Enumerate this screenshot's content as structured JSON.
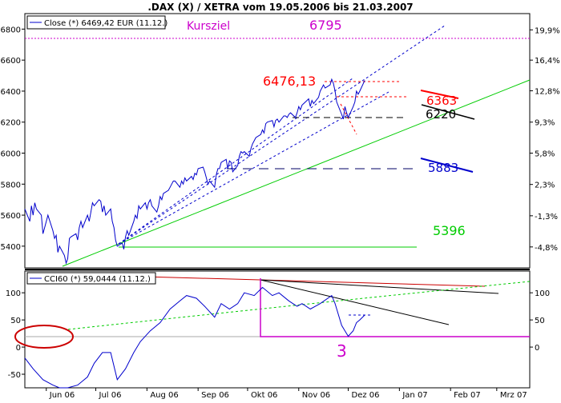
{
  "chart_data": [
    {
      "type": "line",
      "title": ".DAX (X) / XETRA vom 19.05.2006 bis 21.03.2007",
      "legend": {
        "label": "Close (*) 6469,42 EUR (11.12.)",
        "placement": "top-left"
      },
      "x_range": [
        "2006-05-19",
        "2007-03-21"
      ],
      "x_tick_labels": [
        {
          "date": "2006-06-01",
          "label": "Jun 06"
        },
        {
          "date": "2006-07-01",
          "label": "Jul 06"
        },
        {
          "date": "2006-08-01",
          "label": "Aug 06"
        },
        {
          "date": "2006-09-01",
          "label": "Sep 06"
        },
        {
          "date": "2006-10-01",
          "label": "Okt 06"
        },
        {
          "date": "2006-11-01",
          "label": "Nov 06"
        },
        {
          "date": "2006-12-01",
          "label": "Dez 06"
        },
        {
          "date": "2007-01-01",
          "label": "Jan 07"
        },
        {
          "date": "2007-02-01",
          "label": "Feb 07"
        },
        {
          "date": "2007-03-01",
          "label": "Mrz 07"
        }
      ],
      "ylim": [
        5260,
        6900
      ],
      "y_ticks_left": [
        5400,
        5600,
        5800,
        6000,
        6200,
        6400,
        6600,
        6800
      ],
      "y_ticks_right": [
        {
          "value": 5395,
          "label": "-4,8%"
        },
        {
          "value": 5596,
          "label": "-1,3%"
        },
        {
          "value": 5798,
          "label": "2,3%"
        },
        {
          "value": 6000,
          "label": "5,8%"
        },
        {
          "value": 6200,
          "label": "9,3%"
        },
        {
          "value": 6402,
          "label": "12,8%"
        },
        {
          "value": 6600,
          "label": "16,4%"
        },
        {
          "value": 6795,
          "label": "19,9%"
        }
      ],
      "grid": false,
      "series": [
        {
          "color": "#0000cc",
          "points": [
            [
              "2006-05-19",
              5640
            ],
            [
              "2006-05-22",
              5560
            ],
            [
              "2006-05-23",
              5660
            ],
            [
              "2006-05-24",
              5600
            ],
            [
              "2006-05-25",
              5680
            ],
            [
              "2006-05-26",
              5640
            ],
            [
              "2006-05-29",
              5600
            ],
            [
              "2006-05-30",
              5480
            ],
            [
              "2006-05-31",
              5520
            ],
            [
              "2006-06-01",
              5560
            ],
            [
              "2006-06-02",
              5600
            ],
            [
              "2006-06-05",
              5500
            ],
            [
              "2006-06-06",
              5450
            ],
            [
              "2006-06-07",
              5470
            ],
            [
              "2006-06-08",
              5360
            ],
            [
              "2006-06-09",
              5400
            ],
            [
              "2006-06-12",
              5340
            ],
            [
              "2006-06-13",
              5290
            ],
            [
              "2006-06-14",
              5320
            ],
            [
              "2006-06-15",
              5450
            ],
            [
              "2006-06-16",
              5460
            ],
            [
              "2006-06-19",
              5480
            ],
            [
              "2006-06-20",
              5440
            ],
            [
              "2006-06-21",
              5520
            ],
            [
              "2006-06-22",
              5560
            ],
            [
              "2006-06-23",
              5520
            ],
            [
              "2006-06-26",
              5600
            ],
            [
              "2006-06-27",
              5560
            ],
            [
              "2006-06-28",
              5620
            ],
            [
              "2006-06-29",
              5680
            ],
            [
              "2006-06-30",
              5660
            ],
            [
              "2006-07-03",
              5700
            ],
            [
              "2006-07-04",
              5690
            ],
            [
              "2006-07-05",
              5620
            ],
            [
              "2006-07-06",
              5660
            ],
            [
              "2006-07-07",
              5600
            ],
            [
              "2006-07-10",
              5640
            ],
            [
              "2006-07-11",
              5560
            ],
            [
              "2006-07-12",
              5520
            ],
            [
              "2006-07-13",
              5440
            ],
            [
              "2006-07-14",
              5400
            ],
            [
              "2006-07-17",
              5420
            ],
            [
              "2006-07-18",
              5380
            ],
            [
              "2006-07-19",
              5460
            ],
            [
              "2006-07-20",
              5500
            ],
            [
              "2006-07-21",
              5470
            ],
            [
              "2006-07-24",
              5560
            ],
            [
              "2006-07-25",
              5600
            ],
            [
              "2006-07-26",
              5580
            ],
            [
              "2006-07-27",
              5660
            ],
            [
              "2006-07-28",
              5640
            ],
            [
              "2006-07-31",
              5680
            ],
            [
              "2006-08-01",
              5640
            ],
            [
              "2006-08-02",
              5680
            ],
            [
              "2006-08-03",
              5700
            ],
            [
              "2006-08-04",
              5660
            ],
            [
              "2006-08-07",
              5620
            ],
            [
              "2006-08-08",
              5660
            ],
            [
              "2006-08-09",
              5720
            ],
            [
              "2006-08-10",
              5700
            ],
            [
              "2006-08-11",
              5740
            ],
            [
              "2006-08-14",
              5760
            ],
            [
              "2006-08-15",
              5780
            ],
            [
              "2006-08-16",
              5800
            ],
            [
              "2006-08-17",
              5820
            ],
            [
              "2006-08-18",
              5820
            ],
            [
              "2006-08-21",
              5780
            ],
            [
              "2006-08-22",
              5820
            ],
            [
              "2006-08-23",
              5800
            ],
            [
              "2006-08-24",
              5840
            ],
            [
              "2006-08-25",
              5820
            ],
            [
              "2006-08-28",
              5850
            ],
            [
              "2006-08-29",
              5830
            ],
            [
              "2006-08-30",
              5870
            ],
            [
              "2006-08-31",
              5860
            ],
            [
              "2006-09-01",
              5900
            ],
            [
              "2006-09-04",
              5910
            ],
            [
              "2006-09-05",
              5880
            ],
            [
              "2006-09-06",
              5840
            ],
            [
              "2006-09-07",
              5800
            ],
            [
              "2006-09-08",
              5820
            ],
            [
              "2006-09-11",
              5780
            ],
            [
              "2006-09-12",
              5860
            ],
            [
              "2006-09-13",
              5900
            ],
            [
              "2006-09-14",
              5900
            ],
            [
              "2006-09-15",
              5940
            ],
            [
              "2006-09-18",
              5960
            ],
            [
              "2006-09-19",
              5900
            ],
            [
              "2006-09-20",
              5950
            ],
            [
              "2006-09-21",
              5940
            ],
            [
              "2006-09-22",
              5880
            ],
            [
              "2006-09-25",
              5920
            ],
            [
              "2006-09-26",
              5980
            ],
            [
              "2006-09-27",
              6010
            ],
            [
              "2006-09-28",
              6000
            ],
            [
              "2006-09-29",
              6010
            ],
            [
              "2006-10-02",
              5980
            ],
            [
              "2006-10-03",
              6030
            ],
            [
              "2006-10-04",
              6060
            ],
            [
              "2006-10-05",
              6080
            ],
            [
              "2006-10-06",
              6100
            ],
            [
              "2006-10-09",
              6120
            ],
            [
              "2006-10-10",
              6150
            ],
            [
              "2006-10-11",
              6130
            ],
            [
              "2006-10-12",
              6190
            ],
            [
              "2006-10-13",
              6200
            ],
            [
              "2006-10-16",
              6210
            ],
            [
              "2006-10-17",
              6170
            ],
            [
              "2006-10-18",
              6210
            ],
            [
              "2006-10-19",
              6220
            ],
            [
              "2006-10-20",
              6200
            ],
            [
              "2006-10-23",
              6240
            ],
            [
              "2006-10-24",
              6240
            ],
            [
              "2006-10-25",
              6230
            ],
            [
              "2006-10-26",
              6250
            ],
            [
              "2006-10-27",
              6260
            ],
            [
              "2006-10-30",
              6230
            ],
            [
              "2006-10-31",
              6260
            ],
            [
              "2006-11-01",
              6300
            ],
            [
              "2006-11-02",
              6280
            ],
            [
              "2006-11-03",
              6310
            ],
            [
              "2006-11-06",
              6340
            ],
            [
              "2006-11-07",
              6350
            ],
            [
              "2006-11-08",
              6300
            ],
            [
              "2006-11-09",
              6340
            ],
            [
              "2006-11-10",
              6320
            ],
            [
              "2006-11-13",
              6360
            ],
            [
              "2006-11-14",
              6400
            ],
            [
              "2006-11-15",
              6420
            ],
            [
              "2006-11-16",
              6440
            ],
            [
              "2006-11-17",
              6420
            ],
            [
              "2006-11-20",
              6440
            ],
            [
              "2006-11-21",
              6476
            ],
            [
              "2006-11-22",
              6450
            ],
            [
              "2006-11-23",
              6400
            ],
            [
              "2006-11-24",
              6330
            ],
            [
              "2006-11-27",
              6250
            ],
            [
              "2006-11-28",
              6220
            ],
            [
              "2006-11-29",
              6300
            ],
            [
              "2006-11-30",
              6260
            ],
            [
              "2006-12-01",
              6230
            ],
            [
              "2006-12-04",
              6300
            ],
            [
              "2006-12-05",
              6330
            ],
            [
              "2006-12-06",
              6400
            ],
            [
              "2006-12-07",
              6380
            ],
            [
              "2006-12-08",
              6400
            ],
            [
              "2006-12-11",
              6469
            ]
          ]
        }
      ],
      "annotations": [
        {
          "text": "Kursziel",
          "color": "#cc00cc"
        },
        {
          "text": "6795",
          "color": "#cc00cc"
        },
        {
          "text": "6476,13",
          "color": "#ff0000"
        },
        {
          "text": "6363",
          "color": "#ff0000"
        },
        {
          "text": "6220",
          "color": "#000000"
        },
        {
          "text": "5883",
          "color": "#0000cc"
        },
        {
          "text": "5396",
          "color": "#00cc00"
        }
      ],
      "horizontal_lines": [
        {
          "value": 6795,
          "style": "dashed",
          "color": "#cc00cc"
        },
        {
          "value": 6480,
          "style": "dashed",
          "color": "#ff0000"
        },
        {
          "value": 6390,
          "style": "dashed",
          "color": "#ff0000"
        },
        {
          "value": 6225,
          "style": "dashed",
          "color": "#000000"
        },
        {
          "value": 5883,
          "style": "dashed",
          "color": "#000066"
        },
        {
          "value": 5396,
          "style": "solid",
          "color": "#00cc00"
        }
      ]
    },
    {
      "type": "line",
      "legend": {
        "label": "CCI60 (*) 59,0444 (11.12.)",
        "placement": "top-left"
      },
      "ylim": [
        -75,
        140
      ],
      "y_ticks_left": [
        -50,
        0,
        50,
        100
      ],
      "y_ticks_right": [
        0,
        50,
        100
      ],
      "grid": false,
      "series": [
        {
          "color": "#0000cc",
          "points": [
            [
              "2006-05-19",
              -20
            ],
            [
              "2006-05-24",
              -40
            ],
            [
              "2006-05-30",
              -60
            ],
            [
              "2006-06-05",
              -70
            ],
            [
              "2006-06-09",
              -85
            ],
            [
              "2006-06-14",
              -90
            ],
            [
              "2006-06-20",
              -70
            ],
            [
              "2006-06-26",
              -55
            ],
            [
              "2006-06-30",
              -30
            ],
            [
              "2006-07-05",
              -10
            ],
            [
              "2006-07-10",
              -10
            ],
            [
              "2006-07-14",
              -60
            ],
            [
              "2006-07-19",
              -40
            ],
            [
              "2006-07-24",
              -10
            ],
            [
              "2006-07-28",
              10
            ],
            [
              "2006-08-03",
              30
            ],
            [
              "2006-08-09",
              45
            ],
            [
              "2006-08-15",
              70
            ],
            [
              "2006-08-21",
              85
            ],
            [
              "2006-08-25",
              95
            ],
            [
              "2006-08-31",
              90
            ],
            [
              "2006-09-05",
              75
            ],
            [
              "2006-09-11",
              55
            ],
            [
              "2006-09-15",
              80
            ],
            [
              "2006-09-20",
              70
            ],
            [
              "2006-09-25",
              80
            ],
            [
              "2006-09-29",
              100
            ],
            [
              "2006-10-05",
              95
            ],
            [
              "2006-10-10",
              110
            ],
            [
              "2006-10-16",
              95
            ],
            [
              "2006-10-20",
              100
            ],
            [
              "2006-10-26",
              85
            ],
            [
              "2006-10-31",
              75
            ],
            [
              "2006-11-03",
              80
            ],
            [
              "2006-11-08",
              70
            ],
            [
              "2006-11-14",
              80
            ],
            [
              "2006-11-21",
              95
            ],
            [
              "2006-11-23",
              80
            ],
            [
              "2006-11-27",
              40
            ],
            [
              "2006-11-29",
              30
            ],
            [
              "2006-12-01",
              20
            ],
            [
              "2006-12-04",
              30
            ],
            [
              "2006-12-06",
              45
            ],
            [
              "2006-12-08",
              50
            ],
            [
              "2006-12-11",
              59
            ]
          ]
        }
      ],
      "annotations": [
        {
          "text": "3",
          "color": "#cc00cc"
        }
      ]
    }
  ]
}
